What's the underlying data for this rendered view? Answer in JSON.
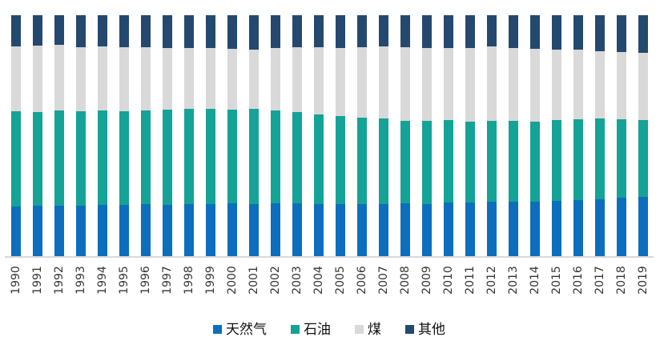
{
  "chart_data": {
    "type": "bar",
    "subtype": "stacked-100-percent",
    "title": "",
    "xlabel": "",
    "ylabel": "",
    "unit": "percent",
    "grid": false,
    "legend_position": "bottom",
    "ylim": [
      0,
      100
    ],
    "categories": [
      "1990",
      "1991",
      "1992",
      "1993",
      "1994",
      "1995",
      "1996",
      "1997",
      "1998",
      "1999",
      "2000",
      "2001",
      "2002",
      "2003",
      "2004",
      "2005",
      "2006",
      "2007",
      "2008",
      "2009",
      "2010",
      "2011",
      "2012",
      "2013",
      "2014",
      "2015",
      "2016",
      "2017",
      "2018",
      "2019"
    ],
    "stack_order_bottom_to_top": [
      "天然气",
      "石油",
      "煤",
      "其他"
    ],
    "series": [
      {
        "key": "gas",
        "name": "天然气",
        "color": "#0D6EBE",
        "values": [
          20.9,
          21.2,
          21.2,
          21.2,
          21.5,
          21.5,
          21.7,
          21.5,
          21.7,
          21.9,
          22.1,
          21.9,
          22.3,
          22.1,
          21.9,
          21.7,
          21.7,
          21.9,
          22.1,
          22.0,
          22.6,
          22.4,
          22.9,
          22.7,
          22.9,
          23.1,
          23.5,
          24.0,
          24.4,
          24.8
        ]
      },
      {
        "key": "oil",
        "name": "石油",
        "color": "#14A396",
        "values": [
          39.2,
          38.8,
          39.3,
          39.0,
          39.0,
          38.8,
          38.8,
          39.3,
          39.4,
          39.5,
          38.9,
          39.3,
          38.2,
          37.8,
          37.1,
          36.6,
          36.0,
          35.3,
          34.3,
          34.4,
          34.0,
          33.7,
          33.5,
          33.7,
          33.2,
          33.5,
          33.5,
          33.4,
          32.5,
          31.9
        ]
      },
      {
        "key": "coal",
        "name": "煤",
        "color": "#D9D9D9",
        "values": [
          27.1,
          27.3,
          27.1,
          26.7,
          26.7,
          26.6,
          26.1,
          25.5,
          25.2,
          25.1,
          25.1,
          24.7,
          26.0,
          26.9,
          27.7,
          28.2,
          29.1,
          29.9,
          30.3,
          30.1,
          29.9,
          30.4,
          30.7,
          29.9,
          30.1,
          29.0,
          28.9,
          27.8,
          28.0,
          27.6
        ]
      },
      {
        "key": "other",
        "name": "其他",
        "color": "#25496E",
        "values": [
          12.8,
          12.7,
          12.4,
          13.1,
          12.8,
          13.1,
          13.4,
          13.7,
          13.7,
          13.5,
          13.9,
          14.1,
          13.5,
          13.2,
          13.3,
          13.5,
          13.2,
          12.9,
          13.3,
          13.5,
          13.5,
          13.5,
          12.9,
          13.7,
          13.8,
          14.4,
          14.1,
          14.8,
          15.1,
          15.7
        ]
      }
    ],
    "axis": {
      "baseline_color": "#D9D9D9",
      "tick_label_color": "#363636"
    }
  }
}
